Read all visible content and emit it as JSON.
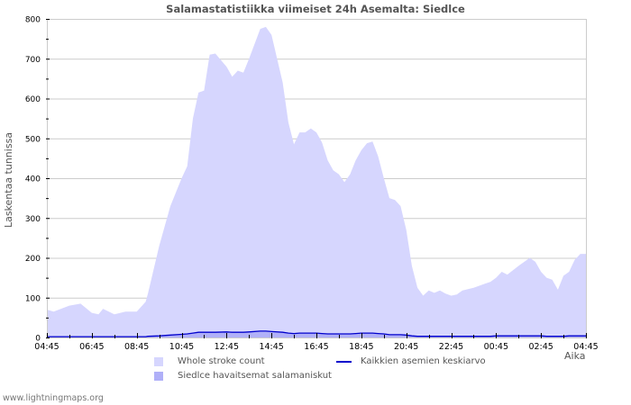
{
  "title": "Salamastatistiikka viimeiset 24h Asemalta: Siedlce",
  "footer": "www.lightningmaps.org",
  "colors": {
    "whole_fill": "#d6d6fe",
    "station_fill": "#b0b0f8",
    "average_line": "#0000cc",
    "grid": "#cccccc",
    "axis": "#cccccc",
    "text": "#555555"
  },
  "legend": [
    {
      "label": "Whole stroke count",
      "type": "area",
      "color": "#d6d6fe"
    },
    {
      "label": "Siedlce havaitsemat salamaniskut",
      "type": "area",
      "color": "#b0b0f8"
    },
    {
      "label": "Kaikkien asemien keskiarvo",
      "type": "line",
      "color": "#0000cc"
    }
  ],
  "chart_data": {
    "type": "area",
    "title": "Salamastatistiikka viimeiset 24h Asemalta: Siedlce",
    "xlabel": "Aika",
    "ylabel": "Laskentaa tunnissa",
    "ylim": [
      0,
      800
    ],
    "yticks": [
      0,
      100,
      200,
      300,
      400,
      500,
      600,
      700,
      800
    ],
    "xtick_labels": [
      "04:45",
      "06:45",
      "08:45",
      "10:45",
      "12:45",
      "14:45",
      "16:45",
      "18:45",
      "20:45",
      "22:45",
      "00:45",
      "02:45",
      "04:45"
    ],
    "x_hours_from_start": [
      0,
      0.3,
      1,
      1.5,
      2,
      2.3,
      2.5,
      3,
      3.5,
      4,
      4.4,
      4.5,
      5,
      5.5,
      6,
      6.25,
      6.5,
      6.75,
      7,
      7.25,
      7.5,
      8,
      8.25,
      8.5,
      8.75,
      9,
      9.5,
      9.75,
      10,
      10.5,
      10.75,
      11,
      11.25,
      11.5,
      11.75,
      12,
      12.25,
      12.5,
      12.75,
      13,
      13.25,
      13.5,
      13.75,
      14,
      14.25,
      14.5,
      14.75,
      15,
      15.25,
      15.5,
      15.75,
      16,
      16.25,
      16.5,
      16.75,
      17,
      17.25,
      17.5,
      17.75,
      18,
      18.25,
      18.5,
      19,
      19.5,
      19.75,
      20,
      20.25,
      20.5,
      21,
      21.5,
      21.75,
      22,
      22.25,
      22.5,
      22.75,
      23,
      23.25,
      23.5,
      23.75,
      24
    ],
    "series": [
      {
        "name": "Whole stroke count",
        "values": [
          70,
          65,
          80,
          85,
          62,
          58,
          72,
          58,
          65,
          65,
          90,
          110,
          230,
          330,
          400,
          430,
          550,
          615,
          620,
          710,
          713,
          680,
          655,
          670,
          665,
          700,
          775,
          780,
          760,
          640,
          540,
          485,
          515,
          515,
          525,
          515,
          490,
          445,
          420,
          410,
          390,
          410,
          445,
          470,
          488,
          492,
          455,
          400,
          350,
          345,
          330,
          270,
          180,
          125,
          105,
          118,
          112,
          118,
          110,
          105,
          108,
          118,
          125,
          135,
          140,
          150,
          165,
          158,
          180,
          200,
          190,
          165,
          150,
          145,
          120,
          155,
          165,
          195,
          210,
          210
        ]
      },
      {
        "name": "Siedlce havaitsemat salamaniskut",
        "values": [
          1,
          1,
          1,
          1,
          1,
          1,
          1,
          1,
          1,
          1,
          1,
          2,
          3,
          5,
          7,
          8,
          10,
          12,
          12,
          12,
          12,
          13,
          12,
          12,
          12,
          13,
          15,
          15,
          14,
          12,
          10,
          9,
          10,
          10,
          10,
          10,
          9,
          8,
          8,
          8,
          8,
          8,
          9,
          10,
          10,
          10,
          9,
          8,
          6,
          6,
          6,
          5,
          3,
          2,
          2,
          2,
          2,
          2,
          2,
          2,
          2,
          2,
          2,
          2,
          2,
          3,
          3,
          3,
          3,
          3,
          3,
          3,
          2,
          2,
          2,
          2,
          3,
          3,
          3,
          3
        ]
      },
      {
        "name": "Kaikkien asemien keskiarvo",
        "values": [
          2,
          2,
          2,
          2,
          2,
          2,
          2,
          2,
          2,
          2,
          2,
          3,
          4,
          6,
          8,
          9,
          11,
          13,
          13,
          13,
          13,
          14,
          13,
          13,
          13,
          14,
          16,
          16,
          15,
          13,
          11,
          10,
          11,
          11,
          11,
          11,
          10,
          9,
          9,
          9,
          9,
          9,
          10,
          11,
          11,
          11,
          10,
          9,
          7,
          7,
          7,
          6,
          4,
          3,
          3,
          3,
          3,
          3,
          3,
          3,
          3,
          3,
          3,
          3,
          3,
          4,
          4,
          4,
          4,
          4,
          4,
          4,
          3,
          3,
          3,
          3,
          4,
          4,
          4,
          4
        ]
      }
    ],
    "grid": true,
    "legend_position": "bottom"
  }
}
